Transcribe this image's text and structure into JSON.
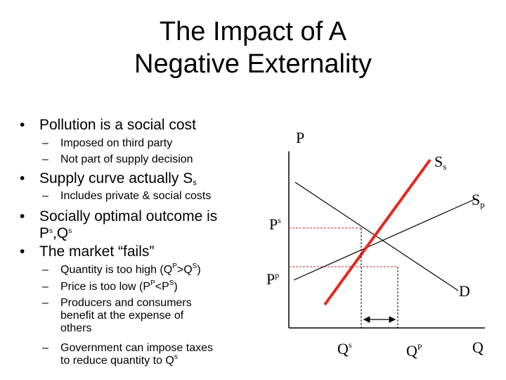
{
  "title": {
    "line1": "The Impact of A",
    "line2": "Negative Externality"
  },
  "bullets": {
    "b1": "Pollution is a social cost",
    "b1_sub1": "Imposed on third party",
    "b1_sub2": "Not part of supply decision",
    "b2_text": "Supply curve actually S",
    "b2_sub": "s",
    "b2_sub1": "Includes private & social costs",
    "b3_line1": "Socially optimal outcome is",
    "b3_p": "P",
    "b3_s1": "s",
    "b3_comma": ",Q",
    "b3_s2": "s",
    "b4": "The market “fails”",
    "b4_sub1": {
      "a": "Quantity is too high (Q",
      "s1": "P",
      "b": ">Q",
      "s2": "S",
      "c": ")"
    },
    "b4_sub2": {
      "a": "Price is too low (P",
      "s1": "P",
      "b": "<P",
      "s2": "S",
      "c": ")"
    },
    "b4_sub3_l1": "Producers and consumers",
    "b4_sub3_l2": "benefit at the expense of",
    "b4_sub3_l3": "others",
    "b4_sub4_l1": "Government can impose taxes",
    "b4_sub4_l2": "to reduce quantity to Q",
    "b4_sub4_s": "s",
    "bullet_glyph": "•",
    "dash_glyph": "–"
  },
  "graph": {
    "y_axis_label": "P",
    "x_axis_label": "Q",
    "ss_label": "S",
    "ss_sub": "s",
    "sp_label": "S",
    "sp_sub": "p",
    "d_label": "D",
    "ps_label": "P",
    "ps_sup": "s",
    "pp_label": "P",
    "pp_sup": "p",
    "qs_label": "Q",
    "qs_sup": "s",
    "qp_label": "Q",
    "qp_sup": "P",
    "social_supply_color": "#e8261d",
    "guide_color": "#cc2222"
  }
}
